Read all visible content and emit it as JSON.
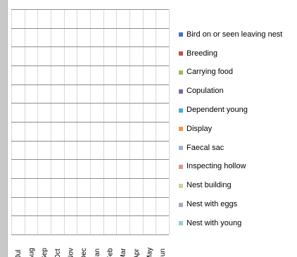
{
  "chart_data": {
    "type": "bar",
    "categories": [
      "Jul",
      "Aug",
      "Sep",
      "Oct",
      "Nov",
      "Dec",
      "Jan",
      "Feb",
      "Mar",
      "Apr",
      "May",
      "Jun"
    ],
    "series": [
      {
        "name": "Bird on or seen leaving nest",
        "color": "#4472c4"
      },
      {
        "name": "Breeding",
        "color": "#c0504d"
      },
      {
        "name": "Carrying food",
        "color": "#9bbb59"
      },
      {
        "name": "Copulation",
        "color": "#8064a2"
      },
      {
        "name": "Dependent young",
        "color": "#4bacc6"
      },
      {
        "name": "Display",
        "color": "#f79646"
      },
      {
        "name": "Faecal  sac",
        "color": "#95b3d7"
      },
      {
        "name": "Inspecting hollow",
        "color": "#d99694"
      },
      {
        "name": "Nest building",
        "color": "#c3d69b"
      },
      {
        "name": "Nest with eggs",
        "color": "#b3a2c7"
      },
      {
        "name": "Nest with young",
        "color": "#93cddd"
      }
    ],
    "gridlines": 12,
    "grid": true,
    "legend_position": "right"
  }
}
